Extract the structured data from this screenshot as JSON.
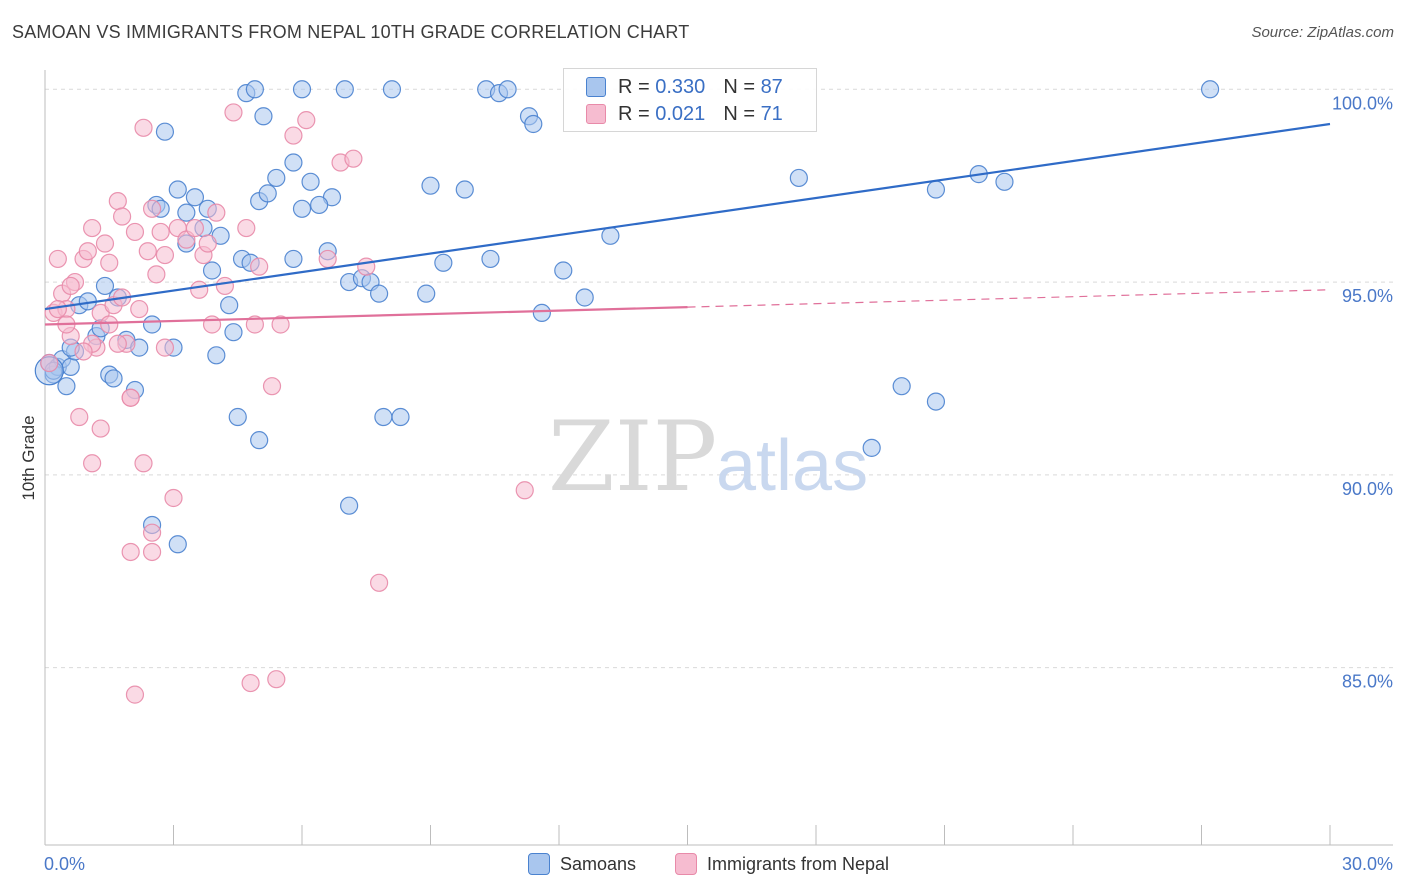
{
  "title": "SAMOAN VS IMMIGRANTS FROM NEPAL 10TH GRADE CORRELATION CHART",
  "source": "Source: ZipAtlas.com",
  "watermark": {
    "zip": "ZIP",
    "atlas": "atlas"
  },
  "colors": {
    "blue_fill": "#a9c6ee",
    "blue_stroke": "#4a82cf",
    "blue_line": "#2f6bc7",
    "pink_fill": "#f6bcd0",
    "pink_stroke": "#e88aa9",
    "pink_line": "#e0709a",
    "grid": "#d9d9d9",
    "tick_text": "#4a78c8"
  },
  "legend": {
    "rows": [
      {
        "r_label": "R =",
        "r_value": "0.330",
        "n_label": "N =",
        "n_value": "87"
      },
      {
        "r_label": "R =",
        "r_value": "0.021",
        "n_label": "N =",
        "n_value": "71"
      }
    ]
  },
  "bottom_legend": {
    "samoans": "Samoans",
    "nepal": "Immigrants from Nepal"
  },
  "chart_data": {
    "type": "scatter",
    "title": "SAMOAN VS IMMIGRANTS FROM NEPAL 10TH GRADE CORRELATION CHART",
    "xlabel": "",
    "ylabel": "10th Grade",
    "xlim": [
      0,
      30
    ],
    "ylim": [
      80.4,
      100.5
    ],
    "x_tick_labels": [
      "0.0%",
      "30.0%"
    ],
    "y_ticks": [
      85,
      90,
      95,
      100
    ],
    "y_tick_labels": [
      "85.0%",
      "90.0%",
      "95.0%",
      "100.0%"
    ],
    "series": [
      {
        "name": "Samoans",
        "r": 0.33,
        "n": 87,
        "trend": {
          "x": [
            0,
            30
          ],
          "y": [
            94.3,
            99.1
          ],
          "dashed_from": null
        },
        "points": [
          [
            0.1,
            92.9
          ],
          [
            0.2,
            92.6
          ],
          [
            0.3,
            92.8
          ],
          [
            0.4,
            93.0
          ],
          [
            0.5,
            92.3
          ],
          [
            0.6,
            92.8
          ],
          [
            0.7,
            93.2
          ],
          [
            0.8,
            94.4
          ],
          [
            1.0,
            94.5
          ],
          [
            1.2,
            93.6
          ],
          [
            1.4,
            94.9
          ],
          [
            1.5,
            92.6
          ],
          [
            1.6,
            92.5
          ],
          [
            1.7,
            94.6
          ],
          [
            1.9,
            93.5
          ],
          [
            2.1,
            92.2
          ],
          [
            2.2,
            93.3
          ],
          [
            2.5,
            93.9
          ],
          [
            2.6,
            97.0
          ],
          [
            2.8,
            98.9
          ],
          [
            3.0,
            93.3
          ],
          [
            3.1,
            97.4
          ],
          [
            3.3,
            96.0
          ],
          [
            3.5,
            97.2
          ],
          [
            3.7,
            96.4
          ],
          [
            3.8,
            96.9
          ],
          [
            3.9,
            95.3
          ],
          [
            4.0,
            93.1
          ],
          [
            4.1,
            96.2
          ],
          [
            4.3,
            94.4
          ],
          [
            4.4,
            93.7
          ],
          [
            4.5,
            91.5
          ],
          [
            4.6,
            95.6
          ],
          [
            4.7,
            99.9
          ],
          [
            4.8,
            95.5
          ],
          [
            5.0,
            97.1
          ],
          [
            5.1,
            99.3
          ],
          [
            5.2,
            97.3
          ],
          [
            5.4,
            97.7
          ],
          [
            5.8,
            98.1
          ],
          [
            5.0,
            90.9
          ],
          [
            5.8,
            95.6
          ],
          [
            6.0,
            100.0
          ],
          [
            6.0,
            96.9
          ],
          [
            6.2,
            97.6
          ],
          [
            6.6,
            95.8
          ],
          [
            6.7,
            97.2
          ],
          [
            7.0,
            100.0
          ],
          [
            7.1,
            95.0
          ],
          [
            7.4,
            95.1
          ],
          [
            7.6,
            95.0
          ],
          [
            7.8,
            94.7
          ],
          [
            8.1,
            100.0
          ],
          [
            8.3,
            91.5
          ],
          [
            8.9,
            94.7
          ],
          [
            9.0,
            97.5
          ],
          [
            9.3,
            95.5
          ],
          [
            9.8,
            97.4
          ],
          [
            10.4,
            95.6
          ],
          [
            10.3,
            100.0
          ],
          [
            10.6,
            99.9
          ],
          [
            10.8,
            100.0
          ],
          [
            11.3,
            99.3
          ],
          [
            11.4,
            99.1
          ],
          [
            11.6,
            94.2
          ],
          [
            12.1,
            95.3
          ],
          [
            12.6,
            94.6
          ],
          [
            13.2,
            96.2
          ],
          [
            17.6,
            97.7
          ],
          [
            19.3,
            90.7
          ],
          [
            20.0,
            92.3
          ],
          [
            20.8,
            97.4
          ],
          [
            20.8,
            91.9
          ],
          [
            21.8,
            97.8
          ],
          [
            22.4,
            97.6
          ],
          [
            27.2,
            100.0
          ],
          [
            2.5,
            88.7
          ],
          [
            3.1,
            88.2
          ],
          [
            7.1,
            89.2
          ],
          [
            7.9,
            91.5
          ],
          [
            4.9,
            100.0
          ],
          [
            0.2,
            92.7
          ],
          [
            0.6,
            93.3
          ],
          [
            1.3,
            93.8
          ],
          [
            3.3,
            96.8
          ],
          [
            6.4,
            97.0
          ],
          [
            2.7,
            96.9
          ]
        ]
      },
      {
        "name": "Immigrants from Nepal",
        "r": 0.021,
        "n": 71,
        "trend": {
          "x": [
            0,
            30
          ],
          "y": [
            93.9,
            94.8
          ],
          "dashed_from": 15.0
        },
        "points": [
          [
            0.1,
            92.9
          ],
          [
            0.2,
            94.2
          ],
          [
            0.3,
            95.6
          ],
          [
            0.4,
            94.7
          ],
          [
            0.5,
            94.3
          ],
          [
            0.6,
            93.6
          ],
          [
            0.7,
            95.0
          ],
          [
            0.8,
            91.5
          ],
          [
            0.9,
            95.6
          ],
          [
            1.0,
            95.8
          ],
          [
            1.1,
            96.4
          ],
          [
            1.1,
            90.3
          ],
          [
            1.2,
            93.3
          ],
          [
            1.3,
            94.2
          ],
          [
            1.3,
            91.2
          ],
          [
            1.4,
            96.0
          ],
          [
            1.5,
            95.5
          ],
          [
            1.6,
            94.4
          ],
          [
            1.7,
            97.1
          ],
          [
            1.8,
            96.7
          ],
          [
            1.8,
            94.6
          ],
          [
            1.9,
            93.4
          ],
          [
            2.0,
            92.0
          ],
          [
            2.1,
            96.3
          ],
          [
            2.2,
            94.3
          ],
          [
            2.3,
            99.0
          ],
          [
            2.3,
            90.3
          ],
          [
            2.4,
            95.8
          ],
          [
            2.5,
            96.9
          ],
          [
            2.6,
            95.2
          ],
          [
            2.7,
            96.3
          ],
          [
            2.8,
            95.7
          ],
          [
            2.8,
            93.3
          ],
          [
            3.0,
            89.4
          ],
          [
            3.1,
            96.4
          ],
          [
            3.3,
            96.1
          ],
          [
            3.5,
            96.4
          ],
          [
            3.6,
            94.8
          ],
          [
            3.7,
            95.7
          ],
          [
            3.9,
            93.9
          ],
          [
            4.0,
            96.8
          ],
          [
            4.2,
            94.9
          ],
          [
            4.4,
            99.4
          ],
          [
            4.7,
            96.4
          ],
          [
            4.9,
            93.9
          ],
          [
            5.0,
            95.4
          ],
          [
            5.3,
            92.3
          ],
          [
            5.8,
            98.8
          ],
          [
            6.1,
            99.2
          ],
          [
            6.6,
            95.6
          ],
          [
            6.9,
            98.1
          ],
          [
            7.2,
            98.2
          ],
          [
            7.5,
            95.4
          ],
          [
            7.8,
            87.2
          ],
          [
            11.2,
            89.6
          ],
          [
            2.1,
            84.3
          ],
          [
            4.8,
            84.6
          ],
          [
            5.4,
            84.7
          ],
          [
            2.0,
            88.0
          ],
          [
            2.5,
            88.0
          ],
          [
            2.5,
            88.5
          ],
          [
            1.1,
            93.4
          ],
          [
            0.5,
            93.9
          ],
          [
            1.5,
            93.9
          ],
          [
            0.9,
            93.2
          ],
          [
            1.7,
            93.4
          ],
          [
            0.3,
            94.3
          ],
          [
            2.0,
            92.0
          ],
          [
            0.6,
            94.9
          ],
          [
            5.5,
            93.9
          ],
          [
            3.8,
            96.0
          ]
        ]
      }
    ]
  }
}
